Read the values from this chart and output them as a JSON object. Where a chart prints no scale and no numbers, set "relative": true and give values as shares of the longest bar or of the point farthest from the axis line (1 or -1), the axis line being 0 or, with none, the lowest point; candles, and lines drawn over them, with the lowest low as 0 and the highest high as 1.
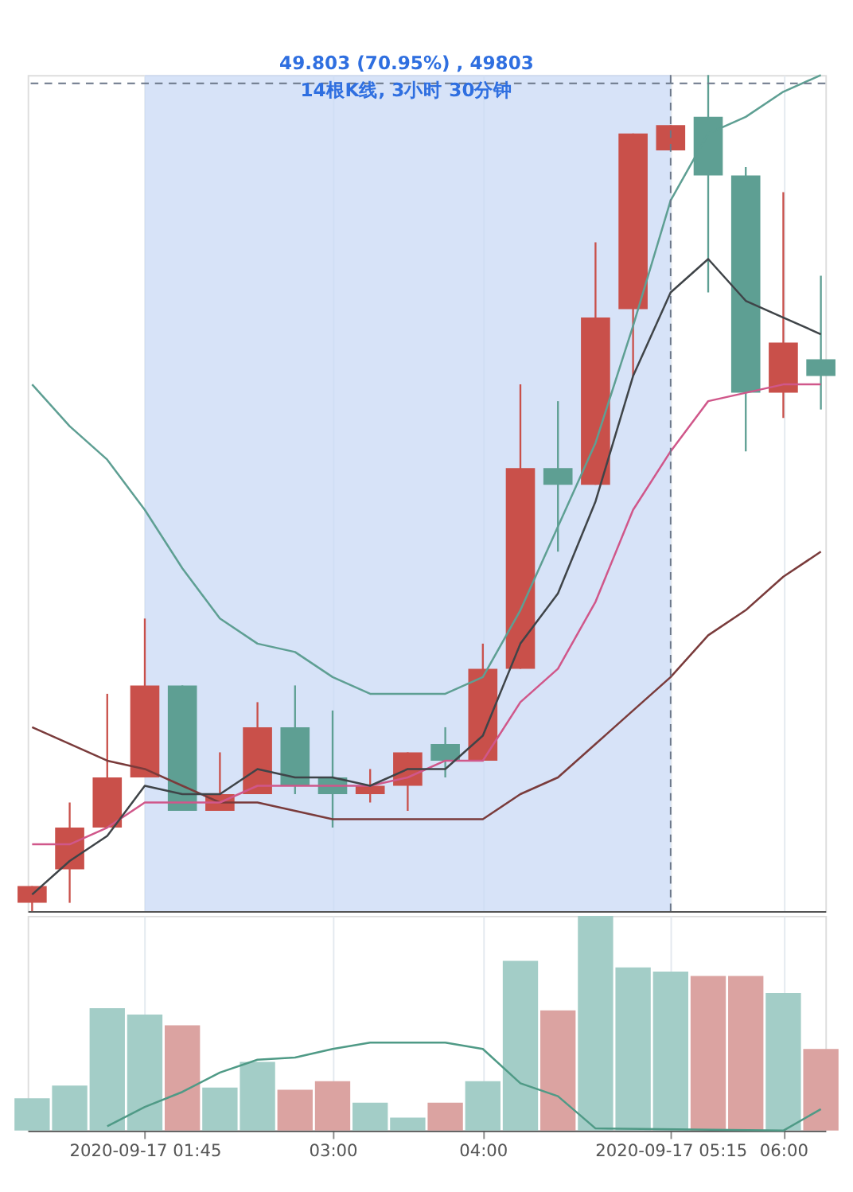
{
  "chart_data": [
    {
      "type": "candlestick",
      "relative": true,
      "x": [
        1,
        1.25,
        1.5,
        1.75,
        2,
        2.25,
        2.5,
        2.75,
        3,
        3.25,
        3.5,
        3.75,
        4,
        4.25,
        4.5,
        4.75,
        5,
        5.25,
        5.5,
        5.75,
        6,
        6.25
      ],
      "ohlc": [
        [
          0.01,
          0.03,
          0.0,
          0.03
        ],
        [
          0.05,
          0.13,
          0.01,
          0.1
        ],
        [
          0.1,
          0.26,
          0.1,
          0.16
        ],
        [
          0.16,
          0.35,
          0.16,
          0.27
        ],
        [
          0.27,
          0.27,
          0.12,
          0.12
        ],
        [
          0.12,
          0.19,
          0.12,
          0.14
        ],
        [
          0.14,
          0.25,
          0.14,
          0.22
        ],
        [
          0.22,
          0.27,
          0.14,
          0.15
        ],
        [
          0.16,
          0.24,
          0.1,
          0.14
        ],
        [
          0.14,
          0.17,
          0.13,
          0.15
        ],
        [
          0.15,
          0.19,
          0.12,
          0.19
        ],
        [
          0.2,
          0.22,
          0.16,
          0.18
        ],
        [
          0.18,
          0.32,
          0.18,
          0.29
        ],
        [
          0.29,
          0.63,
          0.29,
          0.53
        ],
        [
          0.53,
          0.61,
          0.43,
          0.51
        ],
        [
          0.51,
          0.8,
          0.51,
          0.71
        ],
        [
          0.72,
          0.93,
          0.64,
          0.93
        ],
        [
          0.91,
          0.94,
          0.91,
          0.94
        ],
        [
          0.95,
          1.0,
          0.74,
          0.88
        ],
        [
          0.88,
          0.89,
          0.55,
          0.62
        ],
        [
          0.62,
          0.86,
          0.59,
          0.68
        ],
        [
          0.66,
          0.76,
          0.6,
          0.64
        ]
      ],
      "colors": [
        "#c9504a",
        "#c9504a",
        "#c9504a",
        "#c9504a",
        "#5e9f93",
        "#c9504a",
        "#c9504a",
        "#5e9f93",
        "#5e9f93",
        "#c9504a",
        "#c9504a",
        "#5e9f93",
        "#c9504a",
        "#c9504a",
        "#5e9f93",
        "#c9504a",
        "#c9504a",
        "#c9504a",
        "#5e9f93",
        "#5e9f93",
        "#c9504a",
        "#5e9f93"
      ],
      "series": [
        {
          "type": "line",
          "color": "#5e9f93",
          "values": [
            0.63,
            0.58,
            0.54,
            0.48,
            0.41,
            0.35,
            0.32,
            0.31,
            0.28,
            0.26,
            0.26,
            0.26,
            0.28,
            0.36,
            0.46,
            0.56,
            0.7,
            0.85,
            0.93,
            0.95,
            0.98,
            1.0
          ]
        },
        {
          "type": "line",
          "color": "#7a3b3b",
          "values": [
            0.22,
            0.2,
            0.18,
            0.17,
            0.15,
            0.13,
            0.13,
            0.12,
            0.11,
            0.11,
            0.11,
            0.11,
            0.11,
            0.14,
            0.16,
            0.2,
            0.24,
            0.28,
            0.33,
            0.36,
            0.4,
            0.43
          ]
        },
        {
          "type": "line",
          "color": "#d0578a",
          "values": [
            0.08,
            0.08,
            0.1,
            0.13,
            0.13,
            0.13,
            0.15,
            0.15,
            0.15,
            0.15,
            0.16,
            0.18,
            0.18,
            0.25,
            0.29,
            0.37,
            0.48,
            0.55,
            0.61,
            0.62,
            0.63,
            0.63
          ]
        },
        {
          "type": "line",
          "color": "#3f4448",
          "values": [
            0.02,
            0.06,
            0.09,
            0.15,
            0.14,
            0.14,
            0.17,
            0.16,
            0.16,
            0.15,
            0.17,
            0.17,
            0.21,
            0.32,
            0.38,
            0.49,
            0.64,
            0.74,
            0.78,
            0.73,
            0.71,
            0.69
          ]
        }
      ],
      "bands": [
        {
          "axis": "x",
          "from": 1.75,
          "to": 5.25,
          "color": "#c9d9f5"
        }
      ],
      "ref_lines": [
        {
          "axis": "x",
          "value": 5.25,
          "line_style": "dashed",
          "color": "#6b7789"
        },
        {
          "axis": "y",
          "value": 0.99,
          "line_style": "dashed",
          "color": "#6b7789"
        }
      ],
      "annotations": [
        "49.803 (70.95%) , 49803",
        "14根K线, 3小时 30分钟"
      ],
      "xlim": [
        0.97,
        6.28
      ],
      "grid": "x",
      "tick_labels": false,
      "xticks": [
        {
          "value": 1.75,
          "label": null
        },
        {
          "value": 3,
          "label": null
        },
        {
          "value": 4,
          "label": null
        },
        {
          "value": 5.25,
          "label": null
        },
        {
          "value": 6,
          "label": null
        }
      ]
    },
    {
      "type": "bar",
      "relative": true,
      "x": [
        1,
        1.25,
        1.5,
        1.75,
        2,
        2.25,
        2.5,
        2.75,
        3,
        3.25,
        3.5,
        3.75,
        4,
        4.25,
        4.5,
        4.75,
        5,
        5.25,
        5.5,
        5.75,
        6,
        6.25
      ],
      "series": [
        {
          "type": "bar",
          "values": [
            0.15,
            0.21,
            0.57,
            0.54,
            0.49,
            0.2,
            0.32,
            0.19,
            0.23,
            0.13,
            0.06,
            0.13,
            0.23,
            0.79,
            0.56,
            1.0,
            0.76,
            0.74,
            0.72,
            0.72,
            0.64,
            0.38
          ],
          "colors": [
            "#a3cdc7",
            "#a3cdc7",
            "#a3cdc7",
            "#a3cdc7",
            "#dba3a1",
            "#a3cdc7",
            "#a3cdc7",
            "#dba3a1",
            "#dba3a1",
            "#a3cdc7",
            "#a3cdc7",
            "#dba3a1",
            "#a3cdc7",
            "#a3cdc7",
            "#dba3a1",
            "#a3cdc7",
            "#a3cdc7",
            "#a3cdc7",
            "#dba3a1",
            "#dba3a1",
            "#a3cdc7",
            "#dba3a1"
          ]
        },
        {
          "type": "line",
          "color": "#4f9a86",
          "values": [
            null,
            null,
            0.02,
            0.11,
            0.18,
            0.27,
            0.33,
            0.34,
            0.38,
            0.41,
            0.41,
            0.41,
            0.38,
            0.22,
            0.16,
            0.01,
            null,
            null,
            null,
            null,
            0.0,
            0.1
          ]
        }
      ],
      "xlim": [
        0.97,
        6.28
      ],
      "grid": "x",
      "tick_labels": "x",
      "xticks": [
        {
          "value": 1.75,
          "label": "2020-09-17  01:45"
        },
        {
          "value": 3,
          "label": "03:00"
        },
        {
          "value": 4,
          "label": "04:00"
        },
        {
          "value": 5.25,
          "label": "2020-09-17  05:15"
        },
        {
          "value": 6,
          "label": "06:00"
        }
      ]
    }
  ]
}
